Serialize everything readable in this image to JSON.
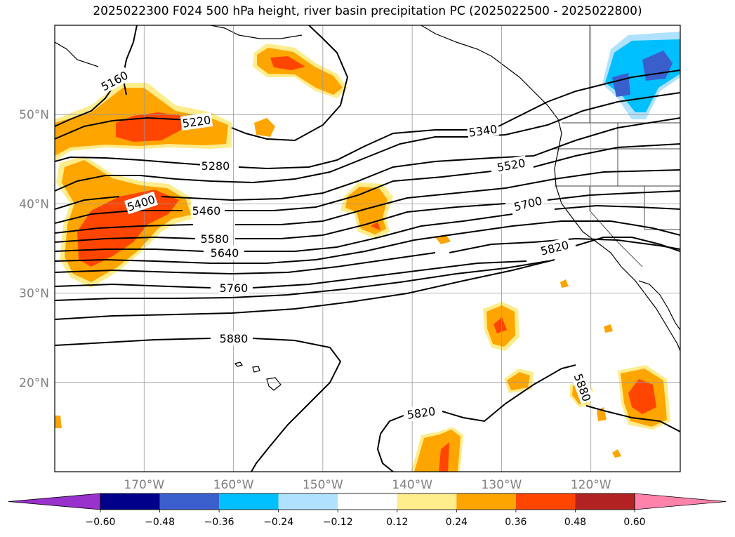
{
  "chart_data": {
    "type": "map",
    "title": "2025022300 F024 500 hPa height, river basin precipitation PC (2025022500 - 2025022800)",
    "lat_labels": [
      "50°N",
      "40°N",
      "30°N",
      "20°N"
    ],
    "lon_labels": [
      "170°W",
      "160°W",
      "150°W",
      "140°W",
      "130°W",
      "120°W"
    ],
    "lat_range": [
      10,
      60
    ],
    "lon_range": [
      -180,
      -110
    ],
    "grid": true,
    "contour_levels": [
      5160,
      5220,
      5280,
      5340,
      5400,
      5460,
      5520,
      5580,
      5640,
      5700,
      5760,
      5820,
      5880
    ],
    "contour_labels": [
      "5160",
      "5220",
      "5280",
      "5340",
      "5400",
      "5460",
      "5520",
      "5580",
      "5640",
      "5700",
      "5760",
      "5820",
      "5880",
      "5820",
      "5880"
    ],
    "colorbar": {
      "ticks": [
        "−0.60",
        "−0.48",
        "−0.36",
        "−0.24",
        "−0.12",
        "0.12",
        "0.24",
        "0.36",
        "0.48",
        "0.60"
      ],
      "colors": [
        "#9932cc",
        "#00008b",
        "#3a5fcd",
        "#00bfff",
        "#b0e2ff",
        "#ffffff",
        "#ffec8b",
        "#ffa500",
        "#ff4500",
        "#b22222",
        "#ff82ab"
      ]
    },
    "colors": {
      "pos_low": "#ffec8b",
      "pos_mid": "#ffa500",
      "pos_high": "#ff4500",
      "neg_low": "#b0e2ff",
      "neg_mid": "#00bfff",
      "neg_high": "#3a5fcd"
    }
  }
}
